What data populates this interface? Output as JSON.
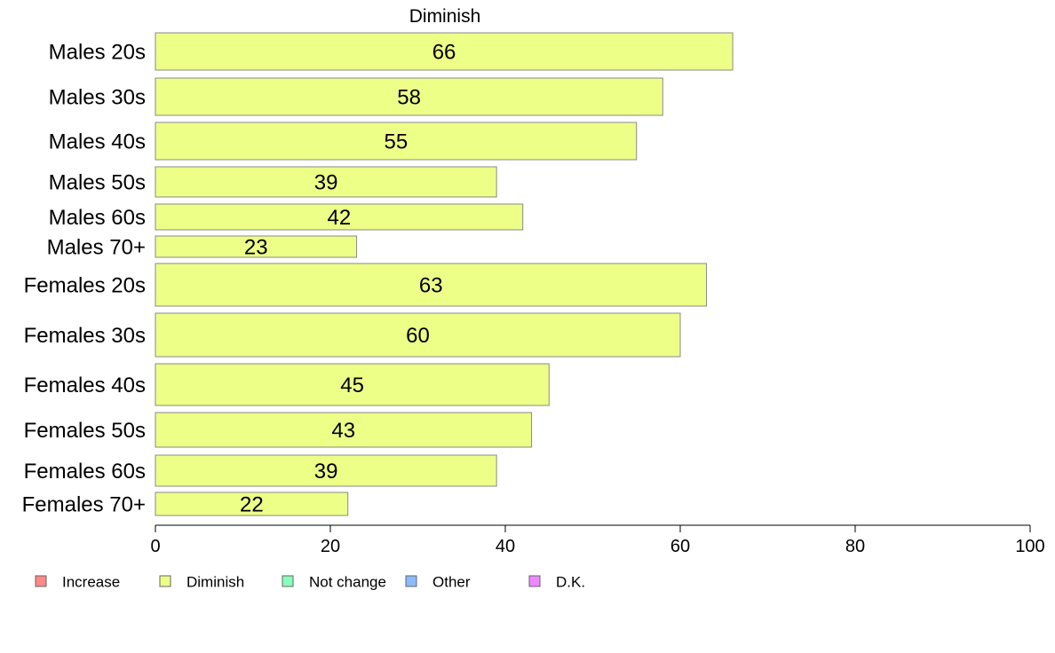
{
  "chart_data": {
    "type": "bar",
    "orientation": "horizontal",
    "title": "Diminish",
    "xlim": [
      0,
      100
    ],
    "xticks": [
      0,
      20,
      40,
      60,
      80,
      100
    ],
    "grid": false,
    "categories": [
      "Males 20s",
      "Males 30s",
      "Males 40s",
      "Males 50s",
      "Males 60s",
      "Males 70+",
      "Females 20s",
      "Females 30s",
      "Females 40s",
      "Females 50s",
      "Females 60s",
      "Females 70+"
    ],
    "values": [
      66,
      58,
      55,
      39,
      42,
      23,
      63,
      60,
      45,
      43,
      39,
      22
    ],
    "bar_color": "#eeff88",
    "legend_position": "bottom",
    "legend": [
      {
        "label": "Increase",
        "color": "#ff8888"
      },
      {
        "label": "Diminish",
        "color": "#eeff88"
      },
      {
        "label": "Not change",
        "color": "#88ffbb"
      },
      {
        "label": "Other",
        "color": "#88bbff"
      },
      {
        "label": "D.K.",
        "color": "#ee88ff"
      }
    ]
  }
}
